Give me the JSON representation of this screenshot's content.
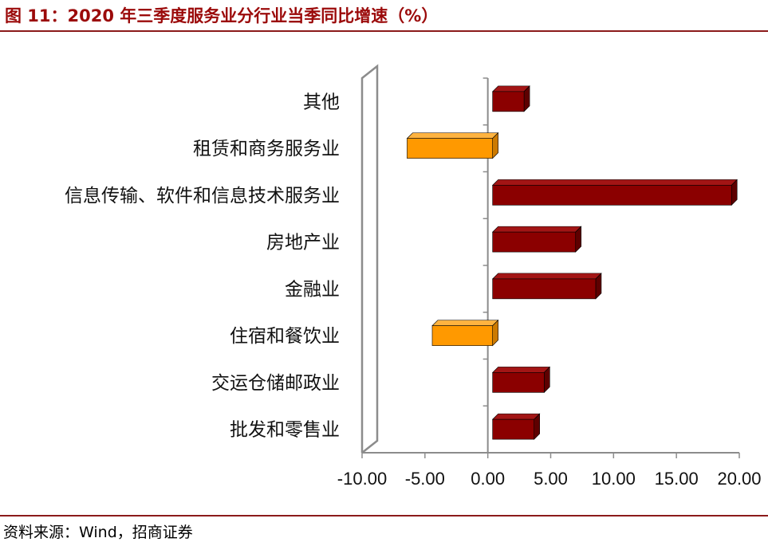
{
  "header": {
    "title": "图 11：2020 年三季度服务业分行业当季同比增速（%）"
  },
  "footer": {
    "source": "资料来源：Wind，招商证券"
  },
  "colors": {
    "positive": "#8b0000",
    "negative": "#ff9900",
    "rule": "#8b1a1a",
    "axis": "#8c8c8c"
  },
  "chart_data": {
    "type": "bar",
    "orientation": "horizontal",
    "title": "",
    "xlabel": "",
    "ylabel": "",
    "categories": [
      "其他",
      "租赁和商务服务业",
      "信息传输、软件和信息技术服务业",
      "房地产业",
      "金融业",
      "住宿和餐饮业",
      "交运仓储邮政业",
      "批发和零售业"
    ],
    "values": [
      2.5,
      -6.8,
      19.0,
      6.6,
      8.2,
      -4.8,
      4.1,
      3.3
    ],
    "xlim": [
      -10,
      20
    ],
    "xticks": [
      "-10.00",
      "-5.00",
      "0.00",
      "5.00",
      "10.00",
      "15.00",
      "20.00"
    ],
    "grid": false,
    "legend": "none",
    "style": "3d"
  }
}
